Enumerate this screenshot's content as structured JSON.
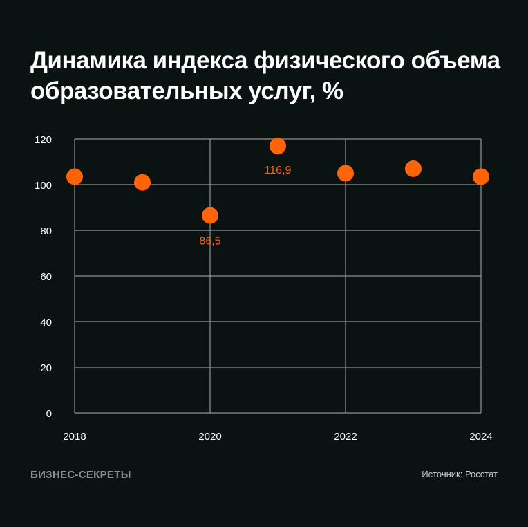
{
  "chart_data": {
    "type": "scatter",
    "title": "Динамика индекса физического объема образовательных услуг, %",
    "x": [
      2018,
      2019,
      2020,
      2021,
      2022,
      2023,
      2024
    ],
    "values": [
      103.5,
      101.0,
      86.5,
      116.9,
      105.0,
      107.0,
      103.5
    ],
    "annotations": [
      {
        "x": 2020,
        "label": "86,5"
      },
      {
        "x": 2021,
        "label": "116,9"
      }
    ],
    "xticks": [
      "2018",
      "2020",
      "2022",
      "2024"
    ],
    "yticks": [
      "0",
      "20",
      "40",
      "60",
      "80",
      "100",
      "120"
    ],
    "xlim": [
      2018,
      2024
    ],
    "ylim": [
      0,
      120
    ],
    "grid": true,
    "colors": {
      "point": "#ff6409",
      "grid": "#8e9392",
      "background": "#0b1312",
      "text": "#ffffff"
    }
  },
  "footer": {
    "logo": "БИЗНЕС-СЕКРЕТЫ",
    "source": "Источник: Росстат"
  }
}
